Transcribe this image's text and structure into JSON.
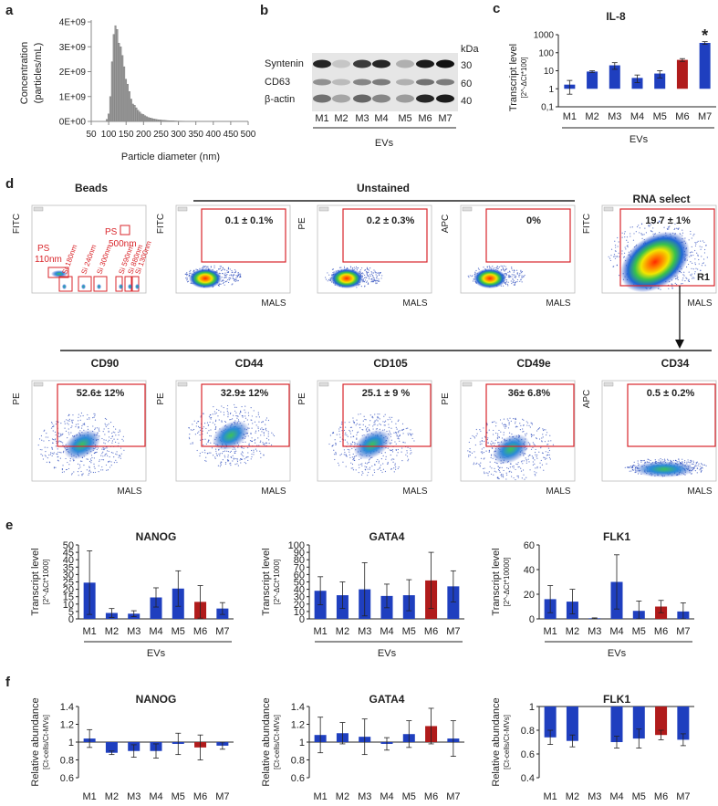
{
  "panel_labels": {
    "a": "a",
    "b": "b",
    "c": "c",
    "d": "d",
    "e": "e",
    "f": "f"
  },
  "panel_a": {
    "ylabel_line1": "Concentration",
    "ylabel_line2": "(particles/mL)",
    "xlabel": "Particle diameter (nm)",
    "y_ticks": [
      "4E+09",
      "3E+09",
      "2E+09",
      "1E+09",
      "0E+00"
    ],
    "x_ticks": [
      "50",
      "100",
      "150",
      "200",
      "250",
      "300",
      "350",
      "400",
      "450",
      "500"
    ]
  },
  "panel_b": {
    "unit": "kDa",
    "rows": [
      {
        "label": "Syntenin",
        "kda": "30"
      },
      {
        "label": "CD63",
        "kda": "60"
      },
      {
        "label": "β-actin",
        "kda": "40"
      }
    ],
    "lanes": [
      "M1",
      "M2",
      "M3",
      "M4",
      "M5",
      "M6",
      "M7"
    ],
    "group_label": "EVs"
  },
  "panel_c": {
    "title": "IL-8",
    "ylabel_line1": "Transcript level",
    "ylabel_line2": "[2^-ΔCt*100]",
    "y_ticks": [
      "1000",
      "100",
      "10",
      "1",
      "0,1"
    ],
    "categories": [
      "M1",
      "M2",
      "M3",
      "M4",
      "M5",
      "M6",
      "M7"
    ],
    "group_label": "EVs",
    "star": "*"
  },
  "panel_d": {
    "beads_title": "Beads",
    "unstained_title": "Unstained",
    "rna_title": "RNA select",
    "bead_labels": {
      "ps110": "PS 110nm",
      "ps500_a": "PS",
      "ps500_b": "500nm",
      "si": [
        "Si 180nm",
        "Si 240nm",
        "Si 300nm",
        "Si 590nm",
        "Si 880nm",
        "Si 1300nm"
      ]
    },
    "top_plots": [
      {
        "yaxis": "FITC",
        "xaxis": "",
        "value": ""
      },
      {
        "yaxis": "FITC",
        "xaxis": "MALS",
        "value": "0.1 ± 0.1%"
      },
      {
        "yaxis": "PE",
        "xaxis": "MALS",
        "value": "0.2 ± 0.3%"
      },
      {
        "yaxis": "APC",
        "xaxis": "MALS",
        "value": "0%"
      },
      {
        "yaxis": "FITC",
        "xaxis": "MALS",
        "value": "19.7 ± 1%",
        "gate": "R1"
      }
    ],
    "bottom_plots": [
      {
        "title": "CD90",
        "yaxis": "PE",
        "xaxis": "MALS",
        "value": "52.6± 12%"
      },
      {
        "title": "CD44",
        "yaxis": "PE",
        "xaxis": "MALS",
        "value": "32.9± 12%"
      },
      {
        "title": "CD105",
        "yaxis": "PE",
        "xaxis": "MALS",
        "value": "25.1 ± 9 %"
      },
      {
        "title": "CD49e",
        "yaxis": "PE",
        "xaxis": "MALS",
        "value": "36± 6.8%"
      },
      {
        "title": "CD34",
        "yaxis": "APC",
        "xaxis": "MALS",
        "value": "0.5 ± 0.2%"
      }
    ]
  },
  "panel_e": {
    "ylabel_line1": "Transcript level",
    "ylabel_1000": "[2^-ΔCt*1000]",
    "ylabel_10000": "[2^-ΔCt*10000]",
    "group_label": "EVs",
    "titles": [
      "NANOG",
      "GATA4",
      "FLK1"
    ]
  },
  "panel_f": {
    "ylabel_line1": "Relative abundance",
    "ylabel_line2": "[Ct-cells/Ct-MVs]",
    "titles": [
      "NANOG",
      "GATA4",
      "FLK1"
    ]
  },
  "colors": {
    "blue": "#1f3fbf",
    "red": "#b01b1b",
    "grey": "#9a9a9a",
    "gate": "#d9262b"
  },
  "chart_data": [
    {
      "type": "bar",
      "id": "a-nta-histogram",
      "xlabel": "Particle diameter (nm)",
      "ylabel": "Concentration (particles/mL)",
      "xlim": [
        50,
        500
      ],
      "ylim": [
        0,
        4000000000
      ],
      "bin_width": 5,
      "x": [
        55,
        60,
        65,
        70,
        75,
        80,
        85,
        90,
        95,
        100,
        105,
        110,
        115,
        120,
        125,
        130,
        135,
        140,
        145,
        150,
        155,
        160,
        165,
        170,
        175,
        180,
        185,
        190,
        195,
        200,
        205,
        210,
        215,
        220,
        225,
        230,
        235,
        240,
        245,
        250,
        255,
        260,
        265,
        270,
        275,
        280,
        285,
        290,
        295,
        300,
        305,
        310,
        315,
        320,
        325,
        330,
        335,
        340,
        345,
        350,
        355,
        360,
        365,
        370,
        375,
        380,
        385,
        390,
        395,
        400,
        405,
        410,
        415,
        420,
        425,
        430,
        435,
        440,
        445,
        450,
        455,
        460,
        465,
        470,
        475,
        480,
        485,
        490,
        495
      ],
      "values": [
        0,
        0,
        0,
        0,
        0,
        0,
        0,
        10000000,
        80000000,
        300000000,
        1000000000,
        2400000000,
        3500000000,
        3850000000,
        3700000000,
        3150000000,
        3000000000,
        2650000000,
        2200000000,
        1700000000,
        1500000000,
        1200000000,
        900000000,
        700000000,
        650000000,
        550000000,
        450000000,
        380000000,
        300000000,
        280000000,
        230000000,
        190000000,
        160000000,
        140000000,
        120000000,
        100000000,
        90000000,
        75000000,
        65000000,
        60000000,
        50000000,
        45000000,
        40000000,
        35000000,
        30000000,
        28000000,
        25000000,
        22000000,
        20000000,
        18000000,
        16000000,
        15000000,
        14000000,
        12000000,
        11000000,
        10000000,
        9000000,
        9000000,
        8000000,
        8000000,
        7000000,
        7000000,
        6000000,
        6000000,
        6000000,
        5000000,
        5000000,
        5000000,
        4000000,
        4000000,
        4000000,
        4000000,
        3000000,
        3000000,
        3000000,
        3000000,
        2000000,
        2000000,
        2000000,
        2000000,
        2000000,
        2000000,
        1000000,
        1000000,
        1000000,
        1000000,
        1000000,
        1000000,
        1000000
      ]
    },
    {
      "type": "bar",
      "id": "c-il8",
      "title": "IL-8",
      "yscale": "log",
      "ylim": [
        0.1,
        1000
      ],
      "categories": [
        "M1",
        "M2",
        "M3",
        "M4",
        "M5",
        "M6",
        "M7"
      ],
      "values": [
        1.7,
        9,
        20,
        4,
        7,
        40,
        350
      ],
      "err": [
        1.2,
        1,
        8,
        1.8,
        3,
        7,
        60
      ],
      "colors": [
        "blue",
        "blue",
        "blue",
        "blue",
        "blue",
        "red",
        "blue"
      ]
    },
    {
      "type": "bar",
      "id": "e-nanog",
      "title": "NANOG",
      "ylim": [
        0,
        50
      ],
      "categories": [
        "M1",
        "M2",
        "M3",
        "M4",
        "M5",
        "M6",
        "M7"
      ],
      "values": [
        24.5,
        4,
        3.5,
        14.5,
        20.5,
        11.5,
        7
      ],
      "err": [
        21.5,
        3,
        2,
        6.5,
        12,
        11,
        4
      ],
      "colors": [
        "blue",
        "blue",
        "blue",
        "blue",
        "blue",
        "red",
        "blue"
      ]
    },
    {
      "type": "bar",
      "id": "e-gata4",
      "title": "GATA4",
      "ylim": [
        0,
        100
      ],
      "categories": [
        "M1",
        "M2",
        "M3",
        "M4",
        "M5",
        "M6",
        "M7"
      ],
      "values": [
        38,
        32,
        40,
        31,
        32,
        52,
        44
      ],
      "err": [
        19,
        18,
        36,
        16,
        21,
        38,
        21
      ],
      "colors": [
        "blue",
        "blue",
        "blue",
        "blue",
        "blue",
        "red",
        "blue"
      ]
    },
    {
      "type": "bar",
      "id": "e-flk1",
      "title": "FLK1",
      "ylim": [
        0,
        60
      ],
      "categories": [
        "M1",
        "M2",
        "M3",
        "M4",
        "M5",
        "M6",
        "M7"
      ],
      "values": [
        16,
        14,
        0.5,
        30,
        6.5,
        10,
        6
      ],
      "err": [
        11,
        10,
        0.3,
        22,
        8,
        5,
        7
      ],
      "colors": [
        "blue",
        "blue",
        "blue",
        "blue",
        "blue",
        "red",
        "blue"
      ]
    },
    {
      "type": "bar",
      "id": "f-nanog",
      "title": "NANOG",
      "ylim": [
        0.6,
        1.4
      ],
      "baseline": 1,
      "categories": [
        "M1",
        "M2",
        "M3",
        "M4",
        "M5",
        "M6",
        "M7"
      ],
      "values": [
        1.04,
        0.88,
        0.9,
        0.9,
        0.98,
        0.94,
        0.96
      ],
      "err": [
        0.1,
        0.02,
        0.07,
        0.08,
        0.12,
        0.14,
        0.04
      ],
      "colors": [
        "blue",
        "blue",
        "blue",
        "blue",
        "blue",
        "red",
        "blue"
      ]
    },
    {
      "type": "bar",
      "id": "f-gata4",
      "title": "GATA4",
      "ylim": [
        0.6,
        1.4
      ],
      "baseline": 1,
      "categories": [
        "M1",
        "M2",
        "M3",
        "M4",
        "M5",
        "M6",
        "M7"
      ],
      "values": [
        1.08,
        1.1,
        1.06,
        0.98,
        1.09,
        1.18,
        1.04
      ],
      "err": [
        0.2,
        0.12,
        0.2,
        0.07,
        0.15,
        0.2,
        0.2
      ],
      "colors": [
        "blue",
        "blue",
        "blue",
        "blue",
        "blue",
        "red",
        "blue"
      ]
    },
    {
      "type": "bar",
      "id": "f-flk1",
      "title": "FLK1",
      "ylim": [
        0.4,
        1
      ],
      "baseline": 1,
      "categories": [
        "M1",
        "M2",
        "M3",
        "M4",
        "M5",
        "M6",
        "M7"
      ],
      "values": [
        0.74,
        0.71,
        1,
        0.7,
        0.73,
        0.76,
        0.72
      ],
      "err": [
        0.06,
        0.05,
        0,
        0.05,
        0.08,
        0.04,
        0.05
      ],
      "colors": [
        "blue",
        "blue",
        "blue",
        "blue",
        "blue",
        "red",
        "blue"
      ]
    }
  ]
}
